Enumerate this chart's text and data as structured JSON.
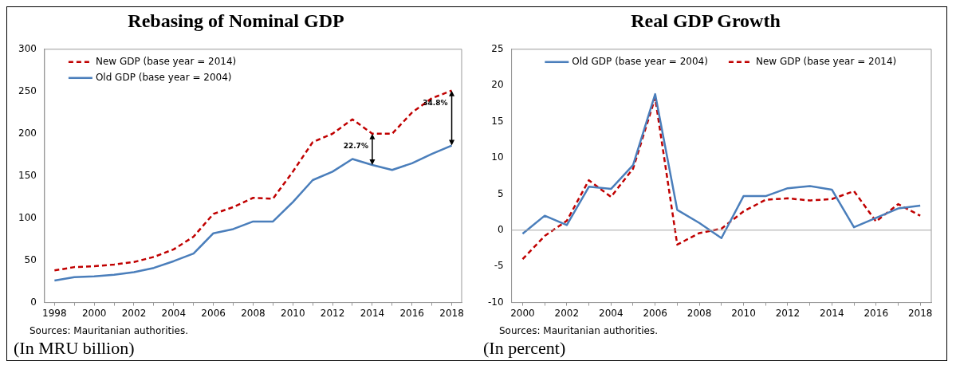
{
  "chart_data": [
    {
      "type": "line",
      "title": "Rebasing of Nominal GDP",
      "categories": [
        "1998",
        null,
        "2000",
        null,
        "2002",
        null,
        "2004",
        null,
        "2006",
        null,
        "2008",
        null,
        "2010",
        null,
        "2012",
        null,
        "2014",
        null,
        "2016",
        null,
        "2018"
      ],
      "series": [
        {
          "name": "New GDP (base year = 2014)",
          "color": "#c00000",
          "line_style": "dashed",
          "values": [
            38,
            42,
            43,
            45,
            48,
            54,
            63,
            78,
            105,
            113,
            124,
            123,
            155,
            190,
            200,
            217,
            200,
            200,
            225,
            242,
            251
          ]
        },
        {
          "name": "Old GDP (base year = 2004)",
          "color": "#4a7ebb",
          "line_style": "solid",
          "values": [
            26,
            30,
            31,
            33,
            36,
            41,
            49,
            58,
            82,
            87,
            96,
            96,
            119,
            145,
            155,
            170,
            163,
            157,
            165,
            176,
            186
          ]
        }
      ],
      "ylim": [
        0,
        300
      ],
      "yticks": [
        0,
        50,
        100,
        150,
        200,
        250,
        300
      ],
      "grid": false,
      "legend": "top left",
      "annotations": [
        {
          "text": "22.7%",
          "x": "2014",
          "y": 200
        },
        {
          "text": "34.8%",
          "x": "2018",
          "y": 251
        },
        "Sources: Mauritanian authorities.",
        "(In MRU billion)"
      ]
    },
    {
      "type": "line",
      "title": "Real GDP Growth",
      "categories": [
        "2000",
        null,
        "2002",
        null,
        "2004",
        null,
        "2006",
        null,
        "2008",
        null,
        "2010",
        null,
        "2012",
        null,
        "2014",
        null,
        "2016",
        null,
        "2018"
      ],
      "series": [
        {
          "name": "Old GDP (base year = 2004)",
          "color": "#4a7ebb",
          "line_style": "solid",
          "values": [
            -0.5,
            2.0,
            0.7,
            6.0,
            5.7,
            9.0,
            18.8,
            2.8,
            1.0,
            -1.1,
            4.7,
            4.7,
            5.8,
            6.1,
            5.6,
            0.4,
            1.7,
            3.0,
            3.4
          ]
        },
        {
          "name": "New GDP (base year = 2014)",
          "color": "#c00000",
          "line_style": "dashed",
          "values": [
            -4.0,
            -0.8,
            1.3,
            6.9,
            4.6,
            8.5,
            18.3,
            -2.0,
            -0.4,
            0.2,
            2.6,
            4.2,
            4.4,
            4.1,
            4.3,
            5.4,
            1.2,
            3.6,
            2.0
          ]
        }
      ],
      "ylim": [
        -10,
        25
      ],
      "yticks": [
        -10,
        -5,
        0,
        5,
        10,
        15,
        20,
        25
      ],
      "grid": false,
      "legend": "top",
      "ref_lines": [
        {
          "axis": "y",
          "value": 0,
          "color": "#a6a6a6"
        }
      ],
      "annotations": [
        "Sources: Mauritanian authorities.",
        "(In percent)"
      ]
    }
  ]
}
